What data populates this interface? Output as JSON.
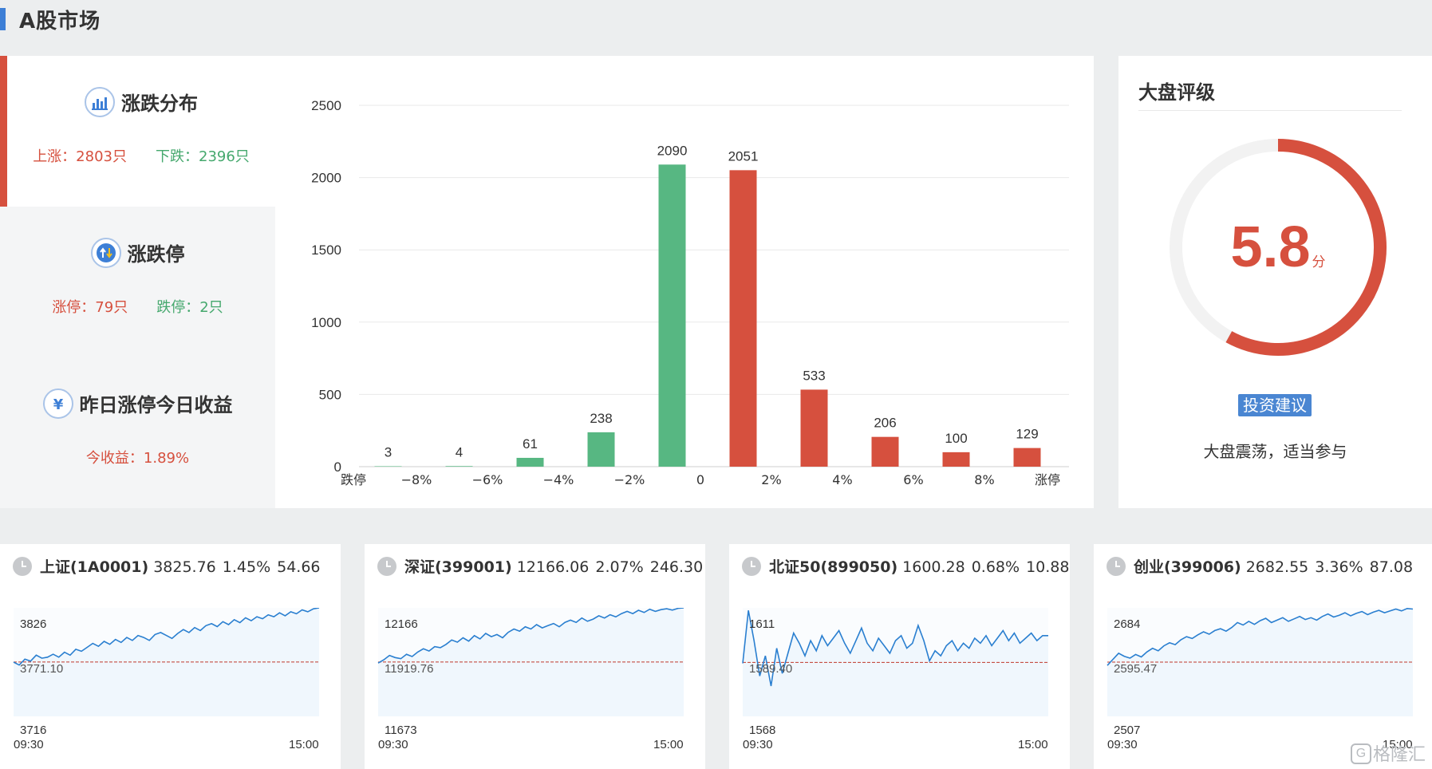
{
  "header": {
    "title": "A股市场"
  },
  "stats": {
    "distribution": {
      "title": "涨跌分布",
      "icon": "bar-chart-icon",
      "up": "上涨：2803只",
      "down": "下跌：2396只"
    },
    "limit": {
      "title": "涨跌停",
      "icon": "up-down-arrows-icon",
      "up": "涨停：79只",
      "down": "跌停：2只"
    },
    "yesterday": {
      "title": "昨日涨停今日收益",
      "icon": "yen-icon",
      "value": "今收益：1.89%"
    }
  },
  "chart_data": {
    "type": "bar",
    "title": "",
    "xlabel": "",
    "ylabel": "",
    "ylim": [
      0,
      2500
    ],
    "yticks": [
      "0",
      "500",
      "1000",
      "1500",
      "2000",
      "2500"
    ],
    "xticks": [
      "跌停",
      "−8%",
      "−6%",
      "−4%",
      "−2%",
      "0",
      "2%",
      "4%",
      "6%",
      "8%",
      "涨停"
    ],
    "values": [
      3,
      4,
      61,
      238,
      2090,
      2051,
      533,
      206,
      100,
      129
    ],
    "bar_colors": [
      "#57b782",
      "#57b782",
      "#57b782",
      "#57b782",
      "#57b782",
      "#d6503e",
      "#d6503e",
      "#d6503e",
      "#d6503e",
      "#d6503e"
    ],
    "grid": true
  },
  "rating": {
    "title": "大盘评级",
    "score": "5.8",
    "score_value": 5.8,
    "max": 10,
    "unit": "分",
    "badge": "投资建议",
    "advice": "大盘震荡，适当参与"
  },
  "indices": [
    {
      "name": "上证(1A0001)",
      "price": "3825.76",
      "pct": "1.45%",
      "chg": "54.66",
      "top": "3826",
      "mid": "3771.10",
      "bottom": "3716",
      "start": "09:30",
      "end": "15:00",
      "ymin": 3716,
      "ymax": 3826,
      "base": 3771.1,
      "series": [
        3771,
        3768,
        3774,
        3772,
        3778,
        3775,
        3776,
        3779,
        3776,
        3781,
        3778,
        3784,
        3782,
        3786,
        3790,
        3787,
        3792,
        3789,
        3794,
        3791,
        3796,
        3793,
        3798,
        3796,
        3793,
        3799,
        3801,
        3798,
        3795,
        3800,
        3804,
        3801,
        3806,
        3803,
        3808,
        3810,
        3807,
        3812,
        3809,
        3814,
        3811,
        3816,
        3813,
        3817,
        3815,
        3819,
        3817,
        3821,
        3818,
        3822,
        3820,
        3824,
        3822,
        3825,
        3826
      ]
    },
    {
      "name": "深证(399001)",
      "price": "12166.06",
      "pct": "2.07%",
      "chg": "246.30",
      "top": "12166",
      "mid": "11919.76",
      "bottom": "11673",
      "start": "09:30",
      "end": "15:00",
      "ymin": 11673,
      "ymax": 12166,
      "base": 11919.76,
      "series": [
        11915,
        11930,
        11950,
        11940,
        11935,
        11955,
        11945,
        11965,
        11980,
        11970,
        11990,
        11985,
        12000,
        12020,
        12010,
        12030,
        12015,
        12040,
        12025,
        12050,
        12035,
        12045,
        12030,
        12055,
        12070,
        12060,
        12080,
        12070,
        12090,
        12075,
        12085,
        12095,
        12080,
        12100,
        12110,
        12100,
        12120,
        12105,
        12115,
        12130,
        12120,
        12135,
        12125,
        12140,
        12150,
        12140,
        12155,
        12145,
        12160,
        12150,
        12158,
        12162,
        12156,
        12164,
        12166
      ]
    },
    {
      "name": "北证50(899050)",
      "price": "1600.28",
      "pct": "0.68%",
      "chg": "10.88",
      "top": "1611",
      "mid": "1589.40",
      "bottom": "1568",
      "start": "09:30",
      "end": "15:00",
      "ymin": 1568,
      "ymax": 1611,
      "base": 1589.4,
      "series": [
        1589,
        1610,
        1598,
        1584,
        1592,
        1580,
        1595,
        1585,
        1593,
        1601,
        1597,
        1592,
        1598,
        1594,
        1600,
        1596,
        1599,
        1602,
        1597,
        1593,
        1598,
        1603,
        1597,
        1594,
        1599,
        1596,
        1593,
        1598,
        1600,
        1595,
        1597,
        1604,
        1598,
        1590,
        1594,
        1592,
        1596,
        1598,
        1594,
        1597,
        1595,
        1599,
        1597,
        1600,
        1596,
        1599,
        1602,
        1598,
        1601,
        1597,
        1599,
        1601,
        1598,
        1600,
        1600
      ]
    },
    {
      "name": "创业(399006)",
      "price": "2682.55",
      "pct": "3.36%",
      "chg": "87.08",
      "top": "2684",
      "mid": "2595.47",
      "bottom": "2507",
      "start": "09:30",
      "end": "15:00",
      "ymin": 2507,
      "ymax": 2684,
      "base": 2595.47,
      "series": [
        2590,
        2600,
        2610,
        2605,
        2602,
        2608,
        2604,
        2612,
        2618,
        2614,
        2622,
        2627,
        2624,
        2632,
        2637,
        2634,
        2640,
        2645,
        2641,
        2647,
        2650,
        2646,
        2652,
        2660,
        2656,
        2662,
        2657,
        2663,
        2667,
        2660,
        2664,
        2668,
        2662,
        2666,
        2670,
        2665,
        2668,
        2664,
        2670,
        2674,
        2669,
        2672,
        2676,
        2671,
        2675,
        2678,
        2673,
        2677,
        2680,
        2676,
        2679,
        2682,
        2679,
        2683,
        2682
      ]
    }
  ],
  "watermark": {
    "icon": "gelonghui-logo-icon",
    "text": "格隆汇"
  }
}
